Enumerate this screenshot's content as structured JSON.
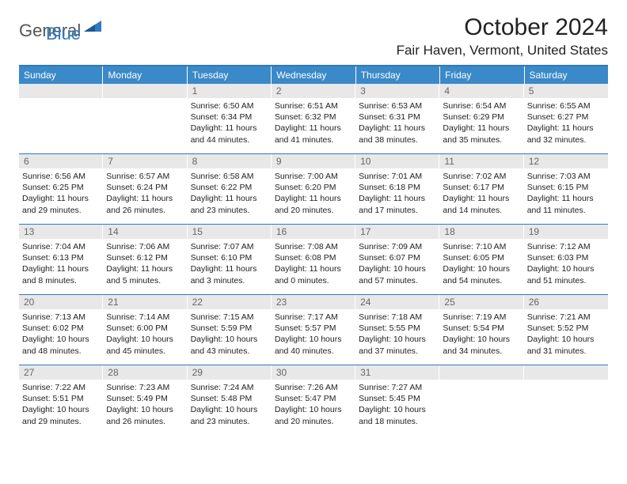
{
  "logo": {
    "part1": "General",
    "part2": "Blue"
  },
  "title": "October 2024",
  "location": "Fair Haven, Vermont, United States",
  "weekdays": [
    "Sunday",
    "Monday",
    "Tuesday",
    "Wednesday",
    "Thursday",
    "Friday",
    "Saturday"
  ],
  "colors": {
    "header_blue": "#3a89c9",
    "rule_blue": "#2f7ac0",
    "daynum_bg": "#e8e8e8",
    "text": "#222222"
  },
  "weeks": [
    [
      null,
      null,
      {
        "n": "1",
        "sr": "6:50 AM",
        "ss": "6:34 PM",
        "dh": "11",
        "dm": "44"
      },
      {
        "n": "2",
        "sr": "6:51 AM",
        "ss": "6:32 PM",
        "dh": "11",
        "dm": "41"
      },
      {
        "n": "3",
        "sr": "6:53 AM",
        "ss": "6:31 PM",
        "dh": "11",
        "dm": "38"
      },
      {
        "n": "4",
        "sr": "6:54 AM",
        "ss": "6:29 PM",
        "dh": "11",
        "dm": "35"
      },
      {
        "n": "5",
        "sr": "6:55 AM",
        "ss": "6:27 PM",
        "dh": "11",
        "dm": "32"
      }
    ],
    [
      {
        "n": "6",
        "sr": "6:56 AM",
        "ss": "6:25 PM",
        "dh": "11",
        "dm": "29"
      },
      {
        "n": "7",
        "sr": "6:57 AM",
        "ss": "6:24 PM",
        "dh": "11",
        "dm": "26"
      },
      {
        "n": "8",
        "sr": "6:58 AM",
        "ss": "6:22 PM",
        "dh": "11",
        "dm": "23"
      },
      {
        "n": "9",
        "sr": "7:00 AM",
        "ss": "6:20 PM",
        "dh": "11",
        "dm": "20"
      },
      {
        "n": "10",
        "sr": "7:01 AM",
        "ss": "6:18 PM",
        "dh": "11",
        "dm": "17"
      },
      {
        "n": "11",
        "sr": "7:02 AM",
        "ss": "6:17 PM",
        "dh": "11",
        "dm": "14"
      },
      {
        "n": "12",
        "sr": "7:03 AM",
        "ss": "6:15 PM",
        "dh": "11",
        "dm": "11"
      }
    ],
    [
      {
        "n": "13",
        "sr": "7:04 AM",
        "ss": "6:13 PM",
        "dh": "11",
        "dm": "8"
      },
      {
        "n": "14",
        "sr": "7:06 AM",
        "ss": "6:12 PM",
        "dh": "11",
        "dm": "5"
      },
      {
        "n": "15",
        "sr": "7:07 AM",
        "ss": "6:10 PM",
        "dh": "11",
        "dm": "3"
      },
      {
        "n": "16",
        "sr": "7:08 AM",
        "ss": "6:08 PM",
        "dh": "11",
        "dm": "0"
      },
      {
        "n": "17",
        "sr": "7:09 AM",
        "ss": "6:07 PM",
        "dh": "10",
        "dm": "57"
      },
      {
        "n": "18",
        "sr": "7:10 AM",
        "ss": "6:05 PM",
        "dh": "10",
        "dm": "54"
      },
      {
        "n": "19",
        "sr": "7:12 AM",
        "ss": "6:03 PM",
        "dh": "10",
        "dm": "51"
      }
    ],
    [
      {
        "n": "20",
        "sr": "7:13 AM",
        "ss": "6:02 PM",
        "dh": "10",
        "dm": "48"
      },
      {
        "n": "21",
        "sr": "7:14 AM",
        "ss": "6:00 PM",
        "dh": "10",
        "dm": "45"
      },
      {
        "n": "22",
        "sr": "7:15 AM",
        "ss": "5:59 PM",
        "dh": "10",
        "dm": "43"
      },
      {
        "n": "23",
        "sr": "7:17 AM",
        "ss": "5:57 PM",
        "dh": "10",
        "dm": "40"
      },
      {
        "n": "24",
        "sr": "7:18 AM",
        "ss": "5:55 PM",
        "dh": "10",
        "dm": "37"
      },
      {
        "n": "25",
        "sr": "7:19 AM",
        "ss": "5:54 PM",
        "dh": "10",
        "dm": "34"
      },
      {
        "n": "26",
        "sr": "7:21 AM",
        "ss": "5:52 PM",
        "dh": "10",
        "dm": "31"
      }
    ],
    [
      {
        "n": "27",
        "sr": "7:22 AM",
        "ss": "5:51 PM",
        "dh": "10",
        "dm": "29"
      },
      {
        "n": "28",
        "sr": "7:23 AM",
        "ss": "5:49 PM",
        "dh": "10",
        "dm": "26"
      },
      {
        "n": "29",
        "sr": "7:24 AM",
        "ss": "5:48 PM",
        "dh": "10",
        "dm": "23"
      },
      {
        "n": "30",
        "sr": "7:26 AM",
        "ss": "5:47 PM",
        "dh": "10",
        "dm": "20"
      },
      {
        "n": "31",
        "sr": "7:27 AM",
        "ss": "5:45 PM",
        "dh": "10",
        "dm": "18"
      },
      null,
      null
    ]
  ]
}
